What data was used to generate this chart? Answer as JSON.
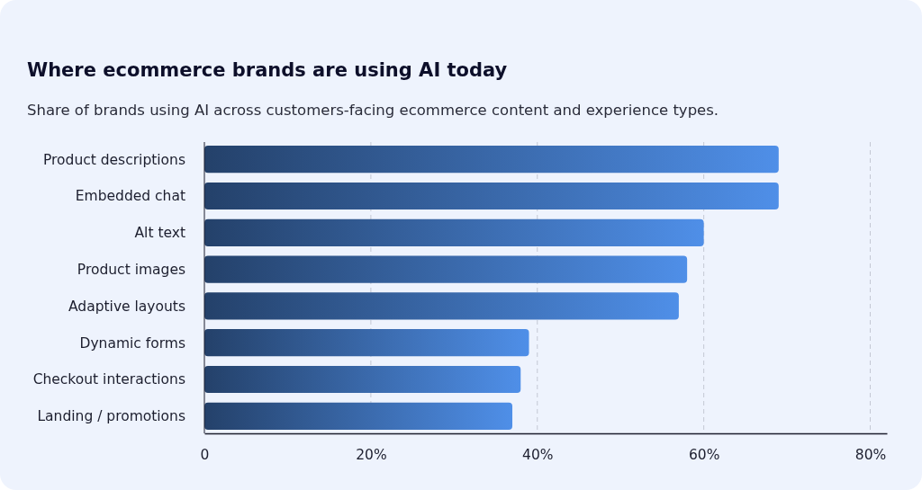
{
  "chart_data": {
    "type": "bar",
    "orientation": "horizontal",
    "title": "Where ecommerce brands are using AI today",
    "subtitle": "Share of brands using AI across customers-facing ecommerce content and experience types.",
    "categories": [
      "Product descriptions",
      "Embedded chat",
      "Alt text",
      "Product images",
      "Adaptive layouts",
      "Dynamic forms",
      "Checkout interactions",
      "Landing / promotions"
    ],
    "values": [
      69,
      69,
      60,
      58,
      57,
      39,
      38,
      37
    ],
    "color": "#4f8fe8",
    "xlim": [
      0,
      82
    ],
    "xticks": [
      0,
      {
        "value": 20,
        "label": "20%"
      },
      {
        "value": 40,
        "label": "40%"
      },
      {
        "value": 60,
        "label": "60%"
      },
      {
        "value": 80,
        "label": "80%"
      }
    ],
    "grid": "x"
  }
}
